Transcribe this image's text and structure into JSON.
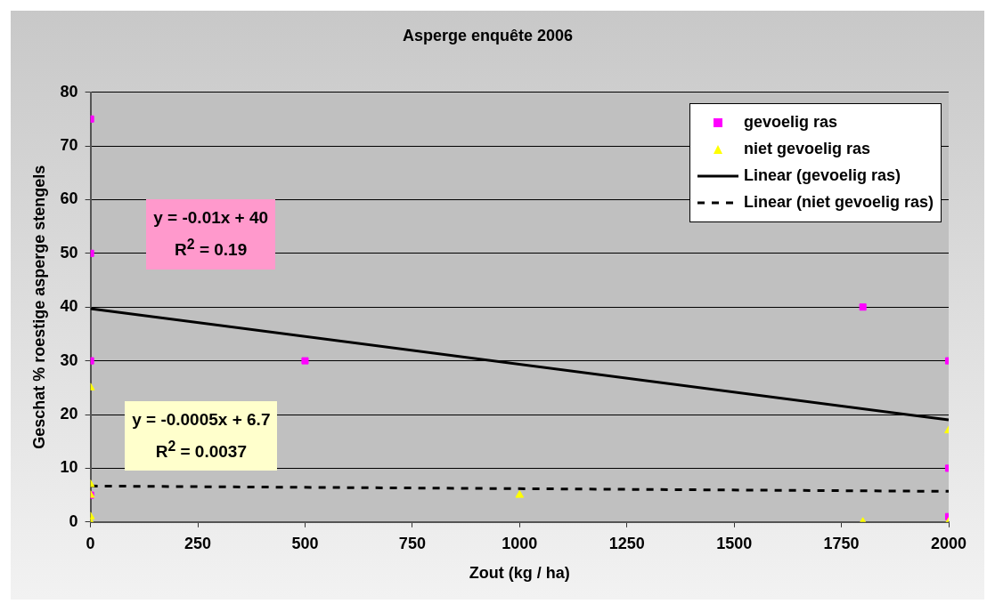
{
  "chart_data": {
    "type": "scatter",
    "title": "Asperge enquête 2006",
    "xlabel": "Zout (kg / ha)",
    "ylabel": "Geschat % roestige asperge stengels",
    "xlim": [
      0,
      2000
    ],
    "xticks": [
      0,
      250,
      500,
      750,
      1000,
      1250,
      1500,
      1750,
      2000
    ],
    "ylim": [
      0,
      80
    ],
    "yticks": [
      0,
      10,
      20,
      30,
      40,
      50,
      60,
      70,
      80
    ],
    "grid": "y",
    "legend": "top right",
    "series": [
      {
        "name": "gevoelig ras",
        "type": "scatter",
        "marker": "square",
        "color": "#ff00ff",
        "x": [
          0,
          0,
          0,
          0,
          500,
          1800,
          2000,
          2000,
          2000
        ],
        "values": [
          75,
          50,
          30,
          5,
          30,
          40,
          30,
          10,
          1
        ]
      },
      {
        "name": "niet gevoelig ras",
        "type": "scatter",
        "marker": "triangle",
        "color": "#ffff00",
        "x": [
          0,
          0,
          0,
          0,
          0,
          1000,
          1800,
          2000,
          2000
        ],
        "values": [
          25,
          7,
          5,
          1,
          0,
          5,
          0,
          17,
          0
        ]
      },
      {
        "name": "Linear (gevoelig ras)",
        "type": "line",
        "marker": "none",
        "line_style": "solid",
        "color": "#000000",
        "x": [
          0,
          2000
        ],
        "values": [
          39.7,
          19
        ]
      },
      {
        "name": "Linear (niet gevoelig ras)",
        "type": "line",
        "marker": "none",
        "line_style": "dashed",
        "color": "#000000",
        "x": [
          0,
          2000
        ],
        "values": [
          6.7,
          5.7
        ]
      }
    ],
    "annotations": [
      "y = -0.01x + 40\nR$^{2}$ = 0.19",
      "y = -0.0005x + 6.7\nR$^{2}$ = 0.0037"
    ]
  }
}
